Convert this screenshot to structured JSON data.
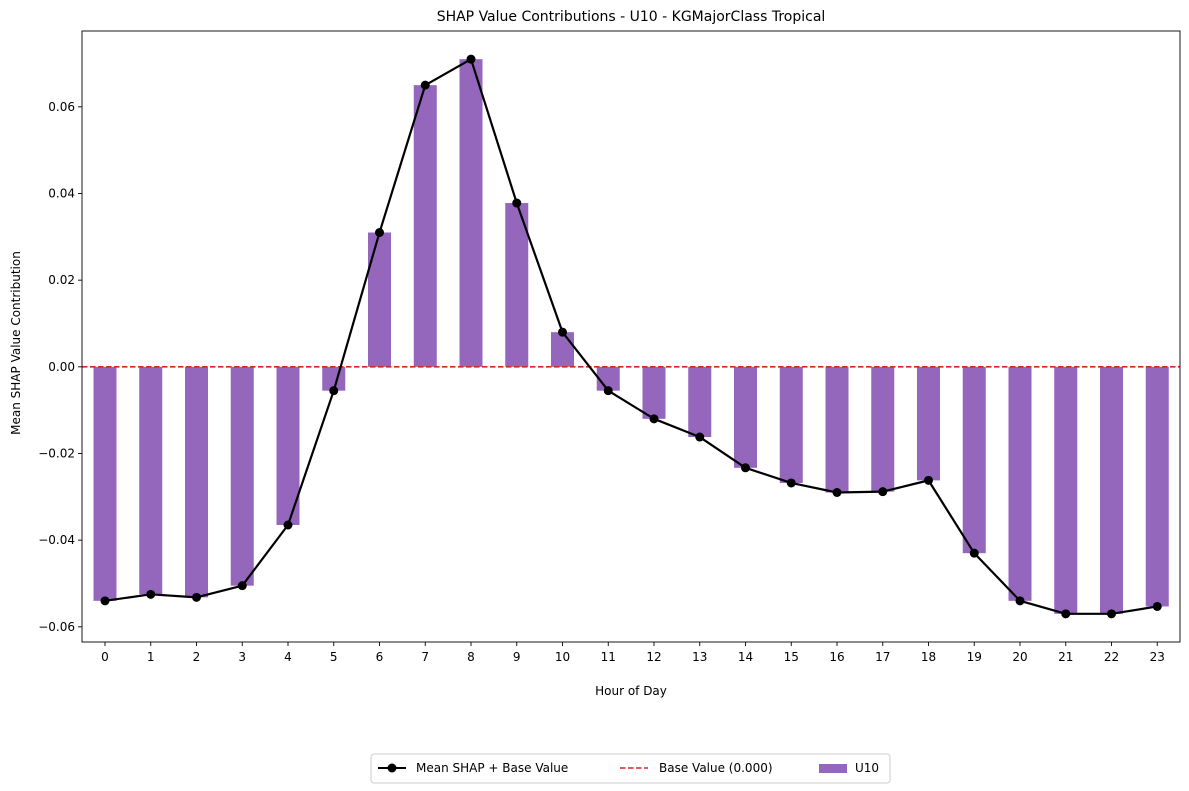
{
  "chart_data": {
    "type": "bar",
    "title": "SHAP Value Contributions - U10 - KGMajorClass Tropical",
    "xlabel": "Hour of Day",
    "ylabel": "Mean SHAP Value Contribution",
    "categories": [
      "0",
      "1",
      "2",
      "3",
      "4",
      "5",
      "6",
      "7",
      "8",
      "9",
      "10",
      "11",
      "12",
      "13",
      "14",
      "15",
      "16",
      "17",
      "18",
      "19",
      "20",
      "21",
      "22",
      "23"
    ],
    "ylim": [
      -0.0635,
      0.0775
    ],
    "yticks": [
      -0.06,
      -0.04,
      -0.02,
      0.0,
      0.02,
      0.04,
      0.06
    ],
    "ytick_labels": [
      "−0.06",
      "−0.04",
      "−0.02",
      "0.00",
      "0.02",
      "0.04",
      "0.06"
    ],
    "grid": false,
    "legend_placement": "bottom-center",
    "series": [
      {
        "name": "U10",
        "kind": "bar",
        "color": "#9467bd",
        "values": [
          -0.054,
          -0.0525,
          -0.0532,
          -0.0505,
          -0.0365,
          -0.0055,
          0.031,
          0.065,
          0.071,
          0.0378,
          0.008,
          -0.0055,
          -0.012,
          -0.0162,
          -0.0233,
          -0.0268,
          -0.029,
          -0.0288,
          -0.0262,
          -0.043,
          -0.054,
          -0.057,
          -0.057,
          -0.0553
        ]
      },
      {
        "name": "Mean SHAP + Base Value",
        "kind": "line",
        "color": "#000000",
        "values": [
          -0.054,
          -0.0525,
          -0.0532,
          -0.0505,
          -0.0365,
          -0.0055,
          0.031,
          0.065,
          0.071,
          0.0378,
          0.008,
          -0.0055,
          -0.012,
          -0.0162,
          -0.0233,
          -0.0268,
          -0.029,
          -0.0288,
          -0.0262,
          -0.043,
          -0.054,
          -0.057,
          -0.057,
          -0.0553
        ]
      },
      {
        "name": "Base Value (0.000)",
        "kind": "hline",
        "color": "#d62728",
        "value": 0.0
      }
    ]
  }
}
